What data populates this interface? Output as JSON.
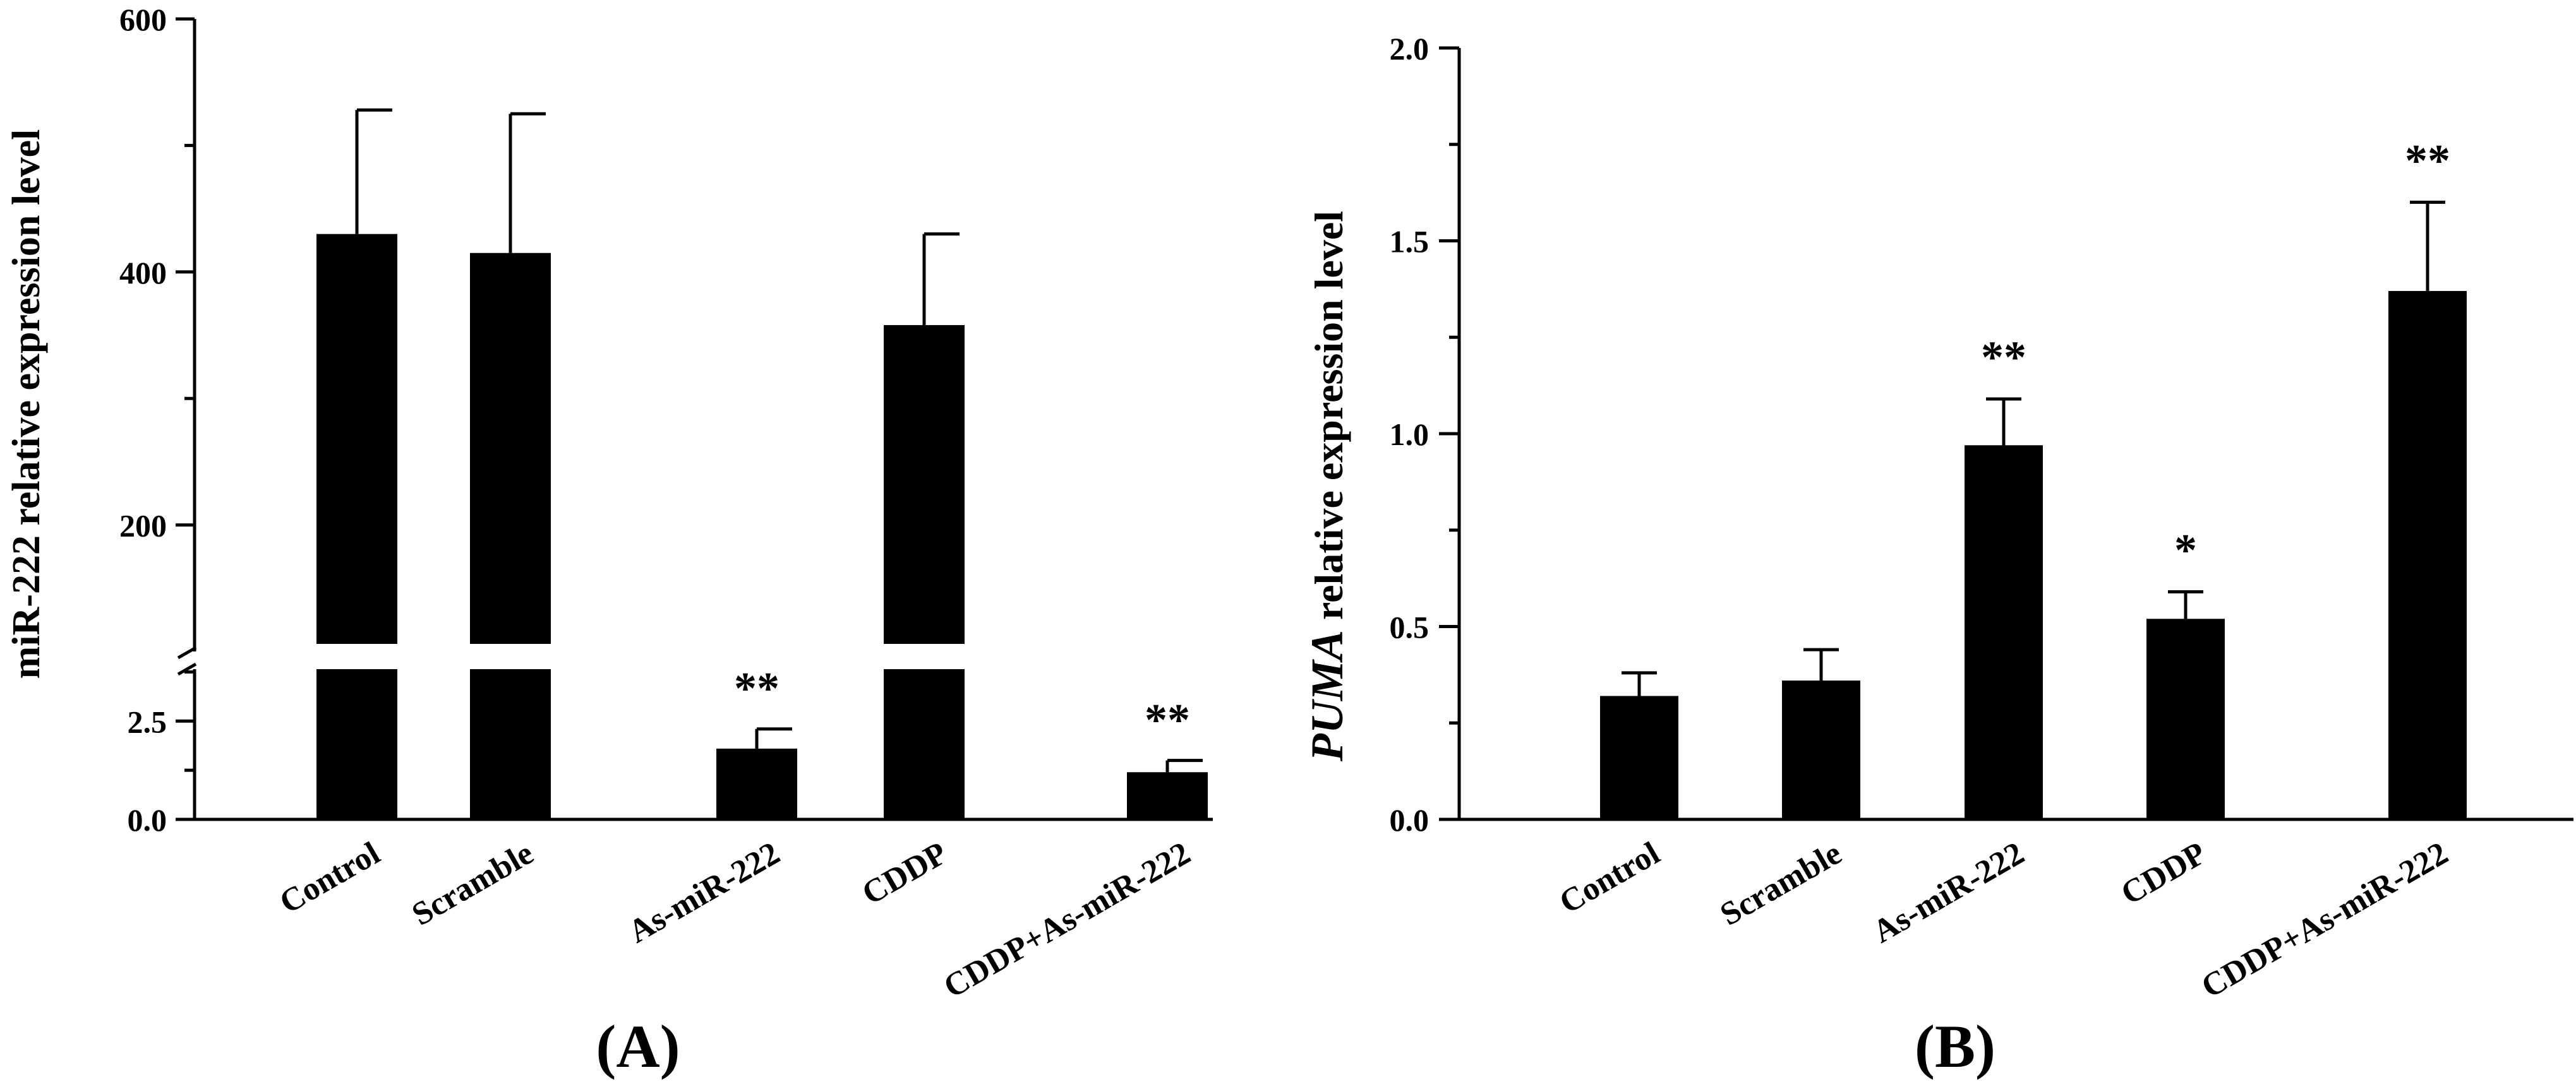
{
  "chart_data": [
    {
      "type": "bar",
      "panel_label": "(A)",
      "ylabel": "miR-222 relative expression level",
      "categories": [
        "Control",
        "Scramble",
        "As-miR-222",
        "CDDP",
        "CDDP+As-miR-222"
      ],
      "values": [
        430,
        415,
        1.8,
        358,
        1.2
      ],
      "errors": [
        98,
        110,
        0.5,
        72,
        0.3
      ],
      "significance": [
        "",
        "",
        "**",
        "",
        "**"
      ],
      "y_broken": true,
      "y_segments": [
        {
          "range": [
            0,
            3.5
          ],
          "ticks": [
            0.0,
            2.5
          ],
          "tick_labels": [
            "0.0",
            "2.5"
          ],
          "minor_ticks": [
            1.25,
            3.75
          ]
        },
        {
          "range": [
            100,
            600
          ],
          "ticks": [
            200,
            400,
            600
          ],
          "tick_labels": [
            "200",
            "400",
            "600"
          ],
          "minor_ticks": [
            300,
            500
          ]
        }
      ],
      "colors": {
        "bar": "#000000"
      }
    },
    {
      "type": "bar",
      "panel_label": "(B)",
      "ylabel_italic": "PUMA",
      "ylabel_rest": " relative expression level",
      "categories": [
        "Control",
        "Scramble",
        "As-miR-222",
        "CDDP",
        "CDDP+As-miR-222"
      ],
      "values": [
        0.32,
        0.36,
        0.97,
        0.52,
        1.37
      ],
      "errors": [
        0.06,
        0.08,
        0.12,
        0.07,
        0.23
      ],
      "significance": [
        "",
        "",
        "**",
        "*",
        "**"
      ],
      "ylim": [
        0,
        2.0
      ],
      "ticks": [
        0.0,
        0.5,
        1.0,
        1.5,
        2.0
      ],
      "tick_labels": [
        "0.0",
        "0.5",
        "1.0",
        "1.5",
        "2.0"
      ],
      "minor_ticks": [
        0.25,
        0.75,
        1.25,
        1.75
      ],
      "colors": {
        "bar": "#000000"
      }
    }
  ]
}
